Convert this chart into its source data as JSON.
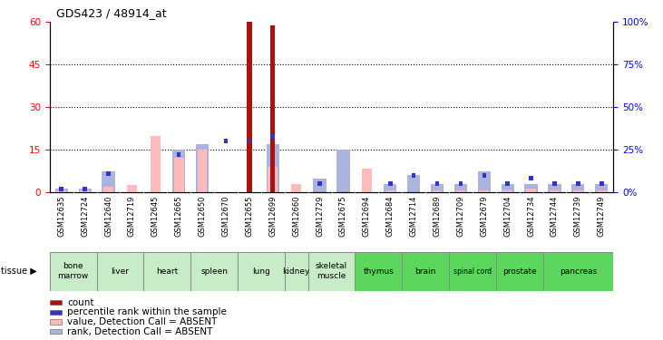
{
  "title": "GDS423 / 48914_at",
  "samples": [
    "GSM12635",
    "GSM12724",
    "GSM12640",
    "GSM12719",
    "GSM12645",
    "GSM12665",
    "GSM12650",
    "GSM12670",
    "GSM12655",
    "GSM12699",
    "GSM12660",
    "GSM12729",
    "GSM12675",
    "GSM12694",
    "GSM12684",
    "GSM12714",
    "GSM12689",
    "GSM12709",
    "GSM12679",
    "GSM12704",
    "GSM12734",
    "GSM12744",
    "GSM12739",
    "GSM12749"
  ],
  "tissue_groups": [
    {
      "name": "bone\nmarrow",
      "cols": [
        0,
        1
      ],
      "color": "#c8ecc8"
    },
    {
      "name": "liver",
      "cols": [
        2,
        3
      ],
      "color": "#c8ecc8"
    },
    {
      "name": "heart",
      "cols": [
        4,
        5
      ],
      "color": "#c8ecc8"
    },
    {
      "name": "spleen",
      "cols": [
        6,
        7
      ],
      "color": "#c8ecc8"
    },
    {
      "name": "lung",
      "cols": [
        8,
        9
      ],
      "color": "#c8ecc8"
    },
    {
      "name": "kidney",
      "cols": [
        10
      ],
      "color": "#c8ecc8"
    },
    {
      "name": "skeletal\nmuscle",
      "cols": [
        11,
        12
      ],
      "color": "#c8ecc8"
    },
    {
      "name": "thymus",
      "cols": [
        13,
        14
      ],
      "color": "#5cd65c"
    },
    {
      "name": "brain",
      "cols": [
        15,
        16
      ],
      "color": "#5cd65c"
    },
    {
      "name": "spinal cord",
      "cols": [
        17,
        18
      ],
      "color": "#5cd65c"
    },
    {
      "name": "prostate",
      "cols": [
        19,
        20
      ],
      "color": "#5cd65c"
    },
    {
      "name": "pancreas",
      "cols": [
        21,
        22,
        23
      ],
      "color": "#5cd65c"
    }
  ],
  "count_values": [
    0,
    0,
    0,
    0,
    0,
    0,
    0,
    0,
    60,
    59,
    0,
    0,
    0,
    0,
    0,
    0,
    0,
    0,
    0,
    0,
    0,
    0,
    0,
    0
  ],
  "percentile_values": [
    2,
    2,
    11,
    0,
    0,
    22,
    0,
    30,
    30,
    33,
    0,
    5,
    0,
    0,
    5,
    10,
    5,
    5,
    10,
    5,
    8,
    5,
    5,
    5
  ],
  "absent_value_values": [
    1,
    1,
    3,
    4,
    33,
    20,
    25,
    0,
    0,
    15,
    5,
    0,
    0,
    14,
    1,
    0,
    1,
    1,
    1,
    1,
    2,
    1,
    1,
    1
  ],
  "absent_rank_values": [
    2,
    2,
    12,
    0,
    0,
    25,
    28,
    0,
    0,
    28,
    0,
    8,
    25,
    0,
    5,
    10,
    5,
    5,
    12,
    5,
    5,
    5,
    5,
    5
  ],
  "ylim_left": [
    0,
    60
  ],
  "ylim_right": [
    0,
    100
  ],
  "yticks_left": [
    0,
    15,
    30,
    45,
    60
  ],
  "yticks_right": [
    0,
    25,
    50,
    75,
    100
  ],
  "color_count": "#aa1111",
  "color_percentile": "#3333cc",
  "color_absent_value": "#ffbbbb",
  "color_absent_rank": "#aab4dd",
  "sample_bg": "#d4d4d4",
  "plot_bg": "#ffffff"
}
